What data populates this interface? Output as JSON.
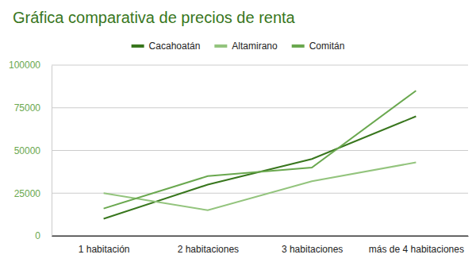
{
  "chart_data": {
    "type": "line",
    "title": "Gráfica comparativa de precios de renta",
    "categories": [
      "1 habitación",
      "2 habitaciones",
      "3 habitaciones",
      "más de 4 habitaciones"
    ],
    "series": [
      {
        "name": "Cacahoatán",
        "color": "#38761d",
        "values": [
          10000,
          30000,
          45000,
          70000
        ]
      },
      {
        "name": "Altamirano",
        "color": "#93c47d",
        "values": [
          25000,
          15000,
          32000,
          43000
        ]
      },
      {
        "name": "Comitán",
        "color": "#6aa84f",
        "values": [
          16000,
          35000,
          40000,
          85000
        ]
      }
    ],
    "ylim": [
      0,
      100000
    ],
    "yticks": [
      0,
      25000,
      50000,
      75000,
      100000
    ],
    "grid": true,
    "legend": "top"
  }
}
